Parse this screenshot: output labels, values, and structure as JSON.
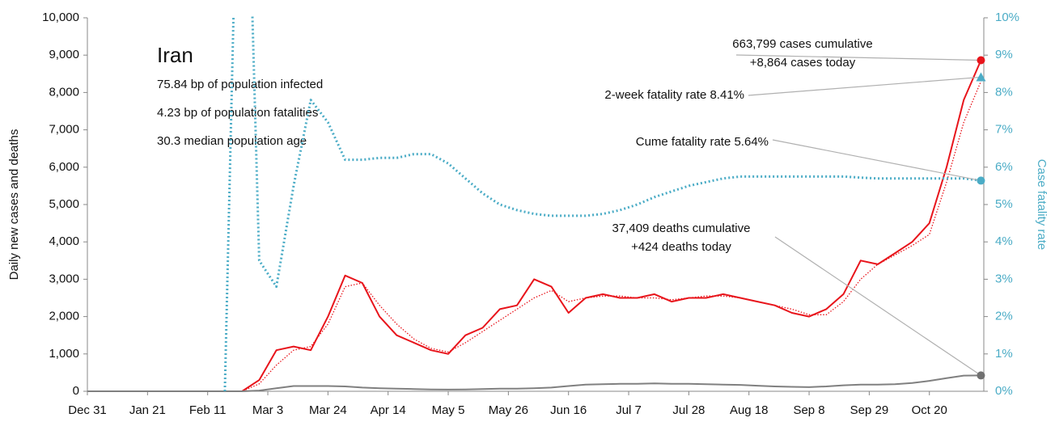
{
  "chart_data": {
    "type": "line",
    "title": "Iran",
    "info": [
      "75.84 bp of population infected",
      "4.23 bp of population fatalities",
      "30.3 median population age"
    ],
    "ylabel": "Daily new cases and deaths",
    "y2label": "Case fatality rate",
    "x": [
      0,
      6,
      12,
      18,
      24,
      30,
      36,
      42,
      48,
      54,
      60,
      66,
      72,
      78,
      84,
      90,
      96,
      102,
      108,
      114,
      120,
      126,
      132,
      138,
      144,
      150,
      156,
      162,
      168,
      174,
      180,
      186,
      192,
      198,
      204,
      210,
      216,
      222,
      228,
      234,
      240,
      246,
      252,
      258,
      264,
      270,
      276,
      282,
      288,
      294,
      300,
      306,
      312
    ],
    "xlim": [
      0,
      313
    ],
    "xticks": [
      {
        "value": 0,
        "label": "Dec 31"
      },
      {
        "value": 21,
        "label": "Jan 21"
      },
      {
        "value": 42,
        "label": "Feb 11"
      },
      {
        "value": 63,
        "label": "Mar 3"
      },
      {
        "value": 84,
        "label": "Mar 24"
      },
      {
        "value": 105,
        "label": "Apr 14"
      },
      {
        "value": 126,
        "label": "May 5"
      },
      {
        "value": 147,
        "label": "May 26"
      },
      {
        "value": 168,
        "label": "Jun 16"
      },
      {
        "value": 189,
        "label": "Jul 7"
      },
      {
        "value": 210,
        "label": "Jul 28"
      },
      {
        "value": 231,
        "label": "Aug 18"
      },
      {
        "value": 252,
        "label": "Sep 8"
      },
      {
        "value": 273,
        "label": "Sep 29"
      },
      {
        "value": 294,
        "label": "Oct 20"
      }
    ],
    "ylim": [
      0,
      10000
    ],
    "yticks": [
      0,
      {
        "value": 1000,
        "label": "1,000"
      },
      {
        "value": 2000,
        "label": "2,000"
      },
      {
        "value": 3000,
        "label": "3,000"
      },
      {
        "value": 4000,
        "label": "4,000"
      },
      {
        "value": 5000,
        "label": "5,000"
      },
      {
        "value": 6000,
        "label": "6,000"
      },
      {
        "value": 7000,
        "label": "7,000"
      },
      {
        "value": 8000,
        "label": "8,000"
      },
      {
        "value": 9000,
        "label": "9,000"
      },
      {
        "value": 10000,
        "label": "10,000"
      }
    ],
    "y2lim": [
      0,
      10
    ],
    "y2ticks": [
      {
        "value": 0,
        "label": "0%"
      },
      {
        "value": 1,
        "label": "1%"
      },
      {
        "value": 2,
        "label": "2%"
      },
      {
        "value": 3,
        "label": "3%"
      },
      {
        "value": 4,
        "label": "4%"
      },
      {
        "value": 5,
        "label": "5%"
      },
      {
        "value": 6,
        "label": "6%"
      },
      {
        "value": 7,
        "label": "7%"
      },
      {
        "value": 8,
        "label": "8%"
      },
      {
        "value": 9,
        "label": "9%"
      },
      {
        "value": 10,
        "label": "10%"
      }
    ],
    "y2color": "#4bacc6",
    "series": [
      {
        "color": "#e8141b",
        "style": "solid",
        "values": [
          0,
          0,
          0,
          0,
          0,
          0,
          0,
          0,
          0,
          0,
          300,
          1100,
          1200,
          1100,
          2000,
          3100,
          2900,
          2000,
          1500,
          1300,
          1100,
          1000,
          1500,
          1700,
          2200,
          2300,
          3000,
          2800,
          2100,
          2500,
          2600,
          2500,
          2500,
          2600,
          2400,
          2500,
          2500,
          2600,
          2500,
          2400,
          2300,
          2100,
          2000,
          2200,
          2600,
          3500,
          3400,
          3700,
          4000,
          4500,
          6000,
          7800,
          8864
        ]
      },
      {
        "color": "#e8141b",
        "style": "dotted",
        "values": [
          0,
          0,
          0,
          0,
          0,
          0,
          0,
          0,
          0,
          0,
          200,
          700,
          1100,
          1200,
          1800,
          2800,
          2900,
          2300,
          1800,
          1400,
          1150,
          1050,
          1300,
          1600,
          1900,
          2200,
          2500,
          2700,
          2400,
          2500,
          2550,
          2550,
          2500,
          2500,
          2450,
          2500,
          2550,
          2550,
          2500,
          2400,
          2300,
          2200,
          2050,
          2050,
          2400,
          3000,
          3400,
          3650,
          3900,
          4200,
          5600,
          7200,
          8300
        ]
      },
      {
        "color": "#808080",
        "style": "solid",
        "values": [
          0,
          0,
          0,
          0,
          0,
          0,
          0,
          0,
          0,
          0,
          20,
          80,
          140,
          140,
          140,
          130,
          100,
          80,
          70,
          60,
          50,
          45,
          50,
          60,
          70,
          70,
          80,
          100,
          140,
          180,
          190,
          200,
          200,
          210,
          200,
          200,
          190,
          180,
          170,
          150,
          130,
          120,
          110,
          130,
          160,
          180,
          180,
          190,
          220,
          280,
          350,
          420,
          424
        ]
      },
      {
        "color": "#4bacc6",
        "style": "dotted",
        "axis": "y2",
        "values": [
          null,
          null,
          null,
          null,
          null,
          null,
          null,
          null,
          0,
          20,
          3.5,
          2.8,
          5.5,
          7.8,
          7.2,
          6.2,
          6.2,
          6.25,
          6.25,
          6.35,
          6.35,
          6.1,
          5.7,
          5.3,
          5.0,
          4.85,
          4.75,
          4.7,
          4.7,
          4.7,
          4.75,
          4.85,
          5.0,
          5.2,
          5.35,
          5.5,
          5.6,
          5.7,
          5.75,
          5.75,
          5.75,
          5.75,
          5.75,
          5.75,
          5.75,
          5.72,
          5.7,
          5.7,
          5.7,
          5.7,
          5.7,
          5.7,
          5.64
        ]
      }
    ],
    "annotations": [
      {
        "text": [
          "663,799 cases cumulative",
          "+8,864 cases today"
        ],
        "x": 312,
        "value": 8864,
        "color": "#e8141b",
        "marker": "circle"
      },
      {
        "text": [
          "2-week fatality rate 8.41%"
        ],
        "x": 312,
        "value": 8.41,
        "axis": "y2",
        "color": "#4bacc6",
        "marker": "triangle"
      },
      {
        "text": [
          "Cume fatality rate 5.64%"
        ],
        "x": 312,
        "value": 5.64,
        "axis": "y2",
        "color": "#4bacc6",
        "marker": "circle"
      },
      {
        "text": [
          "37,409 deaths cumulative",
          "+424 deaths today"
        ],
        "x": 312,
        "value": 424,
        "color": "#707070",
        "marker": "circle"
      }
    ]
  }
}
